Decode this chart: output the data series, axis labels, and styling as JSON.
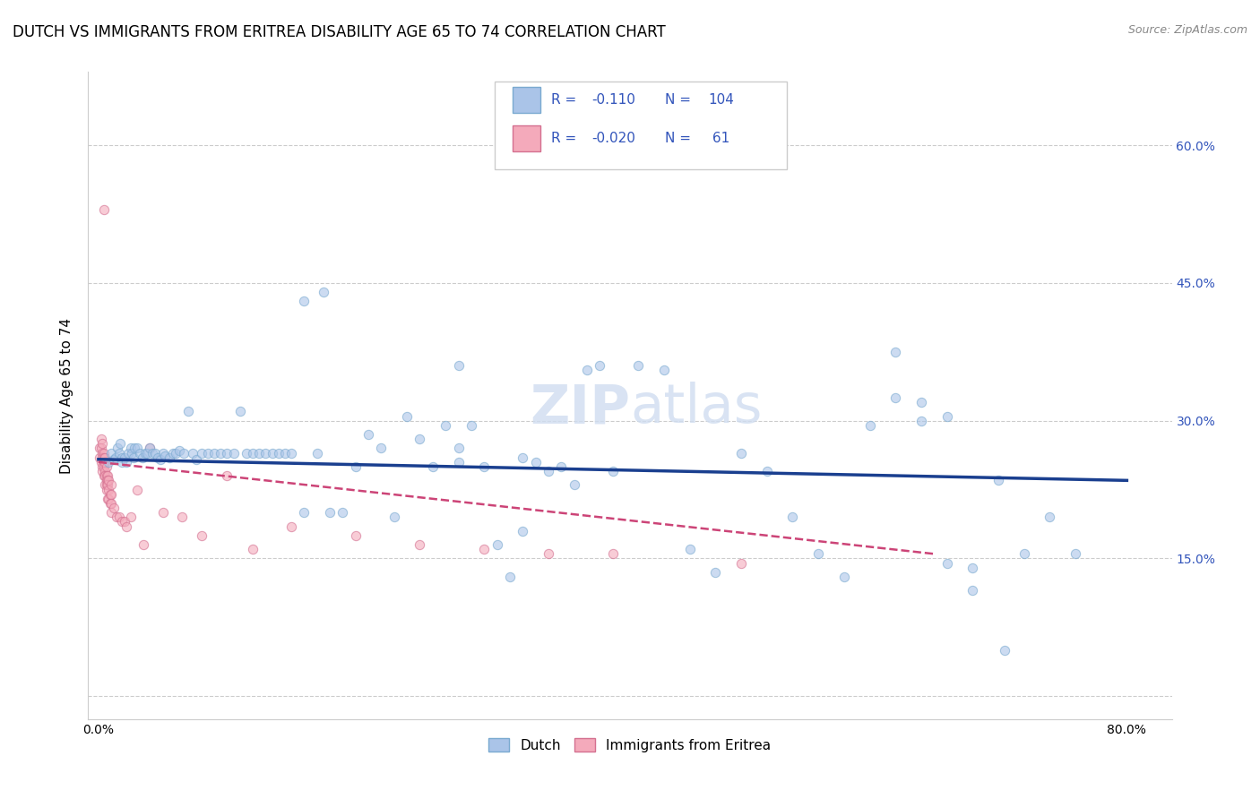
{
  "title": "DUTCH VS IMMIGRANTS FROM ERITREA DISABILITY AGE 65 TO 74 CORRELATION CHART",
  "source": "Source: ZipAtlas.com",
  "ylabel": "Disability Age 65 to 74",
  "x_ticks": [
    0.0,
    0.1,
    0.2,
    0.3,
    0.4,
    0.5,
    0.6,
    0.7,
    0.8
  ],
  "y_ticks": [
    0.0,
    0.15,
    0.3,
    0.45,
    0.6
  ],
  "y_tick_labels": [
    "",
    "15.0%",
    "30.0%",
    "45.0%",
    "60.0%"
  ],
  "xlim": [
    -0.008,
    0.835
  ],
  "ylim": [
    -0.025,
    0.68
  ],
  "dutch_color": "#aac4e8",
  "dutch_edge_color": "#7aaad0",
  "eritrea_color": "#f4aabb",
  "eritrea_edge_color": "#d47090",
  "trend_dutch_color": "#1a3f8f",
  "trend_eritrea_color": "#cc4477",
  "legend_text_color": "#3355bb",
  "right_axis_color": "#3355bb",
  "title_fontsize": 12,
  "label_fontsize": 11,
  "tick_fontsize": 10,
  "marker_size": 55,
  "alpha_dutch": 0.6,
  "alpha_eritrea": 0.6,
  "dutch_x": [
    0.008,
    0.01,
    0.012,
    0.013,
    0.015,
    0.016,
    0.017,
    0.018,
    0.018,
    0.02,
    0.022,
    0.023,
    0.025,
    0.026,
    0.027,
    0.028,
    0.03,
    0.032,
    0.034,
    0.036,
    0.038,
    0.04,
    0.042,
    0.044,
    0.046,
    0.048,
    0.05,
    0.052,
    0.055,
    0.058,
    0.06,
    0.063,
    0.066,
    0.07,
    0.073,
    0.076,
    0.08,
    0.085,
    0.09,
    0.095,
    0.1,
    0.105,
    0.11,
    0.115,
    0.12,
    0.125,
    0.13,
    0.135,
    0.14,
    0.145,
    0.15,
    0.16,
    0.17,
    0.18,
    0.19,
    0.2,
    0.21,
    0.22,
    0.23,
    0.24,
    0.25,
    0.26,
    0.27,
    0.28,
    0.29,
    0.3,
    0.31,
    0.32,
    0.33,
    0.34,
    0.35,
    0.36,
    0.37,
    0.38,
    0.39,
    0.4,
    0.42,
    0.44,
    0.46,
    0.48,
    0.5,
    0.52,
    0.54,
    0.56,
    0.58,
    0.6,
    0.62,
    0.64,
    0.66,
    0.68,
    0.7,
    0.72,
    0.74,
    0.76,
    0.66,
    0.68,
    0.62,
    0.64,
    0.705,
    0.33,
    0.16,
    0.175,
    0.28,
    0.28
  ],
  "dutch_y": [
    0.255,
    0.265,
    0.258,
    0.26,
    0.27,
    0.265,
    0.275,
    0.26,
    0.255,
    0.26,
    0.255,
    0.265,
    0.27,
    0.265,
    0.26,
    0.27,
    0.27,
    0.265,
    0.26,
    0.265,
    0.265,
    0.27,
    0.265,
    0.265,
    0.26,
    0.258,
    0.265,
    0.262,
    0.26,
    0.265,
    0.265,
    0.268,
    0.265,
    0.31,
    0.265,
    0.258,
    0.265,
    0.265,
    0.265,
    0.265,
    0.265,
    0.265,
    0.31,
    0.265,
    0.265,
    0.265,
    0.265,
    0.265,
    0.265,
    0.265,
    0.265,
    0.2,
    0.265,
    0.2,
    0.2,
    0.25,
    0.285,
    0.27,
    0.195,
    0.305,
    0.28,
    0.25,
    0.295,
    0.255,
    0.295,
    0.25,
    0.165,
    0.13,
    0.18,
    0.255,
    0.245,
    0.25,
    0.23,
    0.355,
    0.36,
    0.245,
    0.36,
    0.355,
    0.16,
    0.135,
    0.265,
    0.245,
    0.195,
    0.155,
    0.13,
    0.295,
    0.375,
    0.3,
    0.305,
    0.115,
    0.235,
    0.155,
    0.195,
    0.155,
    0.145,
    0.14,
    0.325,
    0.32,
    0.05,
    0.26,
    0.43,
    0.44,
    0.27,
    0.36
  ],
  "eritrea_x": [
    0.001,
    0.001,
    0.002,
    0.002,
    0.002,
    0.003,
    0.003,
    0.003,
    0.003,
    0.003,
    0.004,
    0.004,
    0.004,
    0.004,
    0.004,
    0.005,
    0.005,
    0.005,
    0.005,
    0.005,
    0.006,
    0.006,
    0.006,
    0.006,
    0.006,
    0.007,
    0.007,
    0.007,
    0.007,
    0.008,
    0.008,
    0.008,
    0.009,
    0.009,
    0.01,
    0.01,
    0.01,
    0.01,
    0.012,
    0.014,
    0.016,
    0.018,
    0.02,
    0.022,
    0.025,
    0.03,
    0.035,
    0.04,
    0.05,
    0.065,
    0.08,
    0.1,
    0.12,
    0.15,
    0.2,
    0.25,
    0.3,
    0.35,
    0.4,
    0.5,
    0.004
  ],
  "eritrea_y": [
    0.27,
    0.26,
    0.28,
    0.27,
    0.255,
    0.275,
    0.265,
    0.26,
    0.25,
    0.245,
    0.265,
    0.255,
    0.26,
    0.25,
    0.24,
    0.26,
    0.255,
    0.245,
    0.24,
    0.23,
    0.25,
    0.24,
    0.235,
    0.23,
    0.225,
    0.24,
    0.235,
    0.23,
    0.215,
    0.235,
    0.225,
    0.215,
    0.22,
    0.21,
    0.23,
    0.22,
    0.21,
    0.2,
    0.205,
    0.195,
    0.195,
    0.19,
    0.19,
    0.185,
    0.195,
    0.225,
    0.165,
    0.27,
    0.2,
    0.195,
    0.175,
    0.24,
    0.16,
    0.185,
    0.175,
    0.165,
    0.16,
    0.155,
    0.155,
    0.145,
    0.53
  ],
  "dutch_trend_x0": 0.0,
  "dutch_trend_y0": 0.258,
  "dutch_trend_x1": 0.8,
  "dutch_trend_y1": 0.235,
  "eritrea_trend_x0": 0.0,
  "eritrea_trend_y0": 0.255,
  "eritrea_trend_x1": 0.65,
  "eritrea_trend_y1": 0.155
}
